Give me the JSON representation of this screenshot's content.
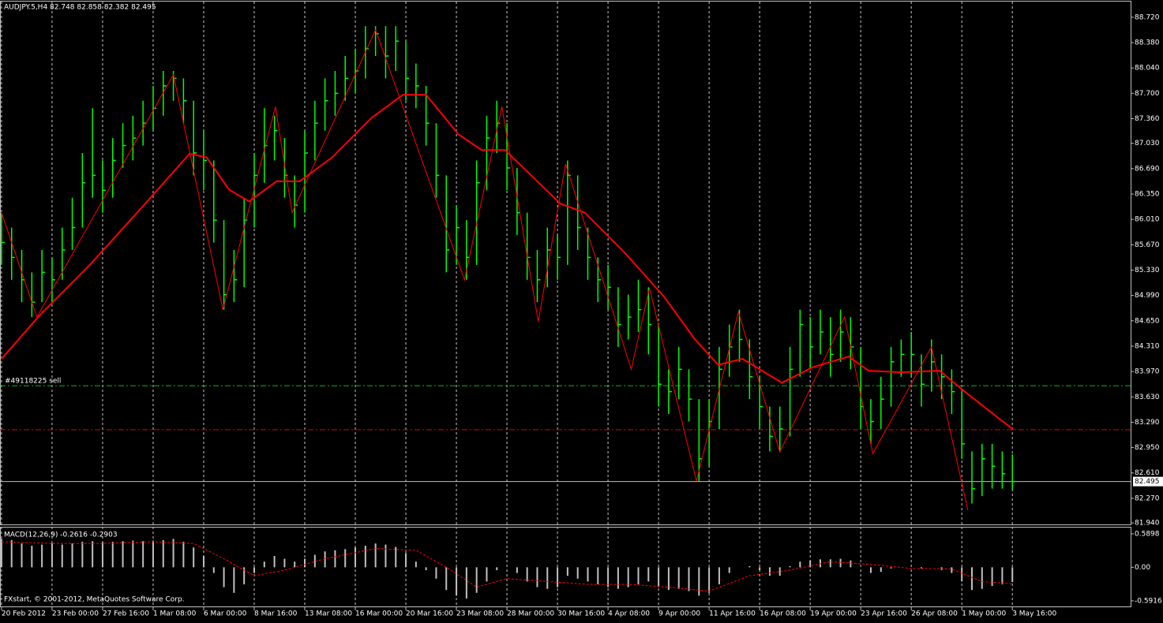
{
  "chart_data": [
    {
      "type": "ohlc",
      "title": "AUDJPY.5,H4  82.748 82.858 82.382 82.495",
      "color": "#00ff00",
      "xlim": [
        -0.15,
        111.7
      ],
      "ylim": [
        81.92,
        88.93
      ],
      "xticks": [
        {
          "value": 0,
          "label": "20 Feb 2012"
        },
        {
          "value": 5,
          "label": "23 Feb 00:00"
        },
        {
          "value": 10,
          "label": "27 Feb 16:00"
        },
        {
          "value": 15,
          "label": "1 Mar 08:00"
        },
        {
          "value": 20,
          "label": "6 Mar 00:00"
        },
        {
          "value": 25,
          "label": "8 Mar 16:00"
        },
        {
          "value": 30,
          "label": "13 Mar 08:00"
        },
        {
          "value": 35,
          "label": "16 Mar 00:00"
        },
        {
          "value": 40,
          "label": "20 Mar 16:00"
        },
        {
          "value": 45,
          "label": "23 Mar 08:00"
        },
        {
          "value": 50,
          "label": "28 Mar 00:00"
        },
        {
          "value": 55,
          "label": "30 Mar 16:00"
        },
        {
          "value": 60,
          "label": "4 Apr 08:00"
        },
        {
          "value": 65,
          "label": "9 Apr 00:00"
        },
        {
          "value": 70,
          "label": "11 Apr 16:00"
        },
        {
          "value": 75,
          "label": "16 Apr 08:00"
        },
        {
          "value": 80,
          "label": "19 Apr 00:00"
        },
        {
          "value": 85,
          "label": "23 Apr 16:00"
        },
        {
          "value": 90,
          "label": "26 Apr 08:00"
        },
        {
          "value": 95,
          "label": "1 May 00:00"
        },
        {
          "value": 100,
          "label": "3 May 16:00"
        }
      ],
      "yticks": [
        {
          "value": 88.72,
          "label": "88.720"
        },
        {
          "value": 88.38,
          "label": "88.380"
        },
        {
          "value": 88.04,
          "label": "88.040"
        },
        {
          "value": 87.7,
          "label": "87.700"
        },
        {
          "value": 87.36,
          "label": "87.360"
        },
        {
          "value": 87.03,
          "label": "87.030"
        },
        {
          "value": 86.69,
          "label": "86.690"
        },
        {
          "value": 86.35,
          "label": "86.350"
        },
        {
          "value": 86.01,
          "label": "86.010"
        },
        {
          "value": 85.67,
          "label": "85.670"
        },
        {
          "value": 85.33,
          "label": "85.330"
        },
        {
          "value": 84.99,
          "label": "84.990"
        },
        {
          "value": 84.65,
          "label": "84.650"
        },
        {
          "value": 84.31,
          "label": "84.310"
        },
        {
          "value": 83.97,
          "label": "83.970"
        },
        {
          "value": 83.63,
          "label": "83.630"
        },
        {
          "value": 83.29,
          "label": "83.290"
        },
        {
          "value": 82.95,
          "label": "82.950"
        },
        {
          "value": 82.61,
          "label": "82.610"
        },
        {
          "value": 82.27,
          "label": "82.270"
        },
        {
          "value": 81.94,
          "label": "81.940"
        }
      ],
      "high": [
        86.1,
        85.9,
        85.6,
        85.3,
        85.6,
        85.5,
        85.9,
        86.3,
        86.9,
        87.5,
        86.8,
        87.1,
        87.3,
        87.4,
        87.6,
        87.8,
        88.0,
        88.0,
        87.9,
        87.6,
        87.2,
        86.8,
        86.0,
        85.6,
        86.3,
        86.9,
        87.5,
        87.4,
        87.1,
        86.6,
        87.2,
        87.6,
        87.9,
        88.0,
        88.2,
        88.3,
        88.6,
        88.6,
        88.6,
        88.6,
        88.4,
        88.1,
        87.8,
        87.3,
        86.6,
        86.2,
        86.0,
        86.8,
        87.4,
        87.6,
        87.3,
        86.7,
        86.1,
        85.6,
        85.9,
        85.8,
        86.8,
        86.6,
        85.9,
        85.5,
        85.4,
        85.1,
        85.0,
        85.2,
        85.1,
        84.6,
        84.0,
        84.3,
        84.0,
        83.6,
        83.6,
        84.3,
        84.6,
        84.8,
        84.4,
        83.9,
        83.5,
        83.5,
        84.3,
        84.8,
        84.7,
        84.8,
        84.7,
        84.8,
        84.7,
        84.3,
        83.6,
        83.9,
        84.3,
        84.4,
        84.5,
        84.2,
        84.4,
        84.2,
        84.0,
        83.7,
        82.9,
        83.0,
        83.0,
        82.9,
        82.858
      ],
      "low": [
        85.4,
        85.2,
        84.9,
        84.7,
        84.9,
        84.9,
        85.2,
        85.6,
        85.9,
        86.3,
        86.1,
        86.3,
        86.7,
        86.8,
        87.0,
        87.2,
        87.4,
        87.6,
        87.3,
        86.6,
        86.4,
        85.7,
        84.8,
        84.9,
        85.1,
        85.9,
        86.5,
        86.8,
        86.3,
        85.9,
        86.1,
        86.8,
        87.2,
        87.4,
        87.6,
        87.7,
        87.9,
        88.2,
        87.9,
        88.0,
        87.6,
        87.5,
        87.0,
        86.3,
        85.3,
        85.4,
        85.2,
        85.4,
        86.4,
        86.9,
        86.4,
        85.8,
        85.2,
        84.9,
        85.1,
        85.2,
        85.4,
        85.6,
        85.2,
        84.9,
        84.8,
        84.3,
        84.4,
        84.5,
        84.2,
        83.5,
        83.4,
        83.6,
        83.3,
        82.5,
        82.7,
        83.2,
        83.9,
        84.1,
        83.6,
        83.2,
        82.9,
        82.9,
        83.1,
        83.9,
        84.0,
        84.2,
        83.9,
        84.1,
        84.0,
        83.2,
        83.0,
        83.2,
        83.5,
        83.9,
        83.9,
        83.5,
        83.7,
        83.6,
        83.4,
        82.8,
        82.2,
        82.3,
        82.4,
        82.4,
        82.382
      ],
      "close": [
        85.7,
        85.5,
        85.2,
        84.9,
        85.3,
        85.2,
        85.6,
        85.9,
        86.5,
        86.6,
        86.4,
        86.8,
        87.0,
        87.1,
        87.3,
        87.5,
        87.8,
        87.9,
        87.6,
        86.9,
        86.8,
        86.0,
        85.0,
        85.2,
        86.0,
        86.6,
        87.0,
        87.2,
        86.6,
        86.2,
        86.9,
        87.3,
        87.6,
        87.7,
        87.9,
        88.0,
        88.3,
        88.5,
        88.2,
        88.4,
        87.9,
        87.8,
        87.3,
        86.6,
        85.6,
        85.9,
        85.5,
        86.5,
        87.1,
        87.3,
        86.7,
        86.1,
        85.5,
        85.2,
        85.6,
        85.5,
        86.6,
        85.9,
        85.5,
        85.2,
        85.1,
        84.6,
        84.7,
        84.8,
        84.6,
        83.8,
        83.7,
        84.0,
        83.6,
        82.8,
        83.3,
        84.0,
        84.3,
        84.4,
        83.9,
        83.5,
        83.1,
        83.2,
        84.0,
        84.6,
        84.3,
        84.5,
        84.2,
        84.5,
        84.3,
        83.5,
        83.3,
        83.6,
        84.1,
        84.2,
        84.2,
        83.8,
        84.1,
        83.9,
        83.7,
        83.0,
        82.4,
        82.8,
        82.7,
        82.6,
        82.495
      ],
      "ma": {
        "color": "#ff0000",
        "x": [
          0,
          3.75,
          8.8,
          13.75,
          18.6,
          20.3,
          22.5,
          24.5,
          27.2,
          29.5,
          32.7,
          36.6,
          39.7,
          42,
          45.2,
          47.5,
          49.8,
          53,
          55.3,
          57.7,
          61.6,
          65.5,
          68.6,
          70.9,
          73.3,
          77.2,
          80.3,
          83.8,
          85.8,
          88.9,
          92.8,
          95.2,
          100.1
        ],
        "values": [
          84.14,
          84.72,
          85.41,
          86.15,
          86.89,
          86.84,
          86.41,
          86.25,
          86.52,
          86.52,
          86.84,
          87.37,
          87.68,
          87.68,
          87.15,
          86.94,
          86.94,
          86.52,
          86.22,
          86.1,
          85.57,
          84.98,
          84.4,
          84.06,
          84.14,
          83.82,
          84.03,
          84.17,
          83.98,
          83.96,
          83.98,
          83.71,
          83.19
        ]
      },
      "zigzag": {
        "color": "#ff0000",
        "x": [
          0,
          3.5,
          17,
          21.9,
          27.1,
          28.75,
          37,
          40.1,
          45.8,
          49.5,
          53.1,
          55.8,
          62.3,
          64.1,
          68.75,
          72.9,
          77,
          83.4,
          86.2,
          92,
          95.6
        ],
        "values": [
          86.1,
          84.7,
          87.95,
          84.8,
          87.52,
          86.1,
          88.55,
          87.37,
          85.2,
          87.52,
          84.64,
          86.75,
          84.0,
          85.09,
          82.5,
          84.77,
          82.89,
          84.7,
          82.87,
          84.3,
          82.11
        ]
      },
      "hlines": [
        {
          "value": 83.78,
          "color": "#00c000",
          "label": "#49118225 sell"
        },
        {
          "value": 83.19,
          "color": "#e00000"
        },
        {
          "value": 82.495,
          "color": "#c0c0c0"
        }
      ]
    },
    {
      "type": "macd",
      "title": "MACD(12,26,9) -0.2616 -0.2903",
      "annotation": "FXstart, © 2001-2012, MetaQuotes Software Corp.",
      "color": "#c0c0c0",
      "ylim": [
        -0.69,
        0.7
      ],
      "yticks": [
        0.5898,
        {
          "value": 0,
          "label": "0.00"
        },
        -0.5916
      ],
      "values": [
        0.5,
        0.48,
        0.42,
        0.38,
        0.4,
        0.42,
        0.4,
        0.42,
        0.45,
        0.46,
        0.44,
        0.45,
        0.46,
        0.47,
        0.46,
        0.47,
        0.48,
        0.5,
        0.45,
        0.35,
        0.2,
        -0.1,
        -0.35,
        -0.45,
        -0.3,
        -0.1,
        0.1,
        0.2,
        0.15,
        0.1,
        0.15,
        0.22,
        0.28,
        0.3,
        0.32,
        0.35,
        0.38,
        0.42,
        0.4,
        0.36,
        0.25,
        0.1,
        -0.05,
        -0.2,
        -0.4,
        -0.5,
        -0.55,
        -0.45,
        -0.25,
        -0.05,
        0.0,
        -0.1,
        -0.25,
        -0.35,
        -0.38,
        -0.35,
        -0.15,
        -0.2,
        -0.25,
        -0.3,
        -0.35,
        -0.38,
        -0.35,
        -0.3,
        -0.25,
        -0.35,
        -0.4,
        -0.38,
        -0.42,
        -0.5,
        -0.45,
        -0.3,
        -0.1,
        0.0,
        0.02,
        -0.05,
        -0.15,
        -0.15,
        0.02,
        0.1,
        0.12,
        0.14,
        0.14,
        0.15,
        0.12,
        0.0,
        -0.1,
        -0.08,
        -0.02,
        0.0,
        0.0,
        -0.02,
        0.0,
        -0.05,
        -0.1,
        -0.25,
        -0.4,
        -0.38,
        -0.33,
        -0.3,
        -0.2616
      ],
      "signal": {
        "color": "#ff0000",
        "x": [
          0,
          5,
          10,
          15,
          19,
          22,
          25,
          28,
          32,
          37,
          41,
          44,
          47,
          50,
          54,
          58,
          62,
          66,
          70,
          74,
          78,
          82,
          86,
          90,
          94,
          97,
          100
        ],
        "values": [
          0.45,
          0.42,
          0.42,
          0.45,
          0.42,
          0.15,
          -0.15,
          -0.05,
          0.15,
          0.33,
          0.3,
          0.0,
          -0.35,
          -0.2,
          -0.25,
          -0.3,
          -0.3,
          -0.35,
          -0.42,
          -0.15,
          -0.05,
          0.1,
          0.05,
          -0.02,
          -0.03,
          -0.25,
          -0.2903
        ]
      }
    }
  ]
}
